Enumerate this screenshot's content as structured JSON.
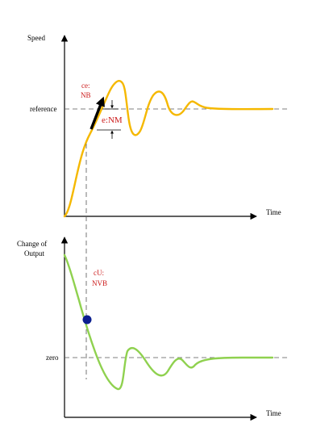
{
  "top_plot": {
    "y_axis_label": "Speed",
    "x_axis_label": "Time",
    "reference_label": "reference",
    "ce_annotation_line1": "ce:",
    "ce_annotation_line2": "NB",
    "e_annotation": "e:NM",
    "curve_color": "#f5b800"
  },
  "bottom_plot": {
    "y_axis_label_line1": "Change of",
    "y_axis_label_line2": "Output",
    "x_axis_label": "Time",
    "zero_label": "zero",
    "cu_annotation_line1": "cU:",
    "cu_annotation_line2": "NVB",
    "curve_color": "#8fd14f",
    "marker_color": "#0b1f8f"
  },
  "colors": {
    "annotation": "#cc1a1a",
    "axis": "#000000",
    "guide": "#555555"
  }
}
